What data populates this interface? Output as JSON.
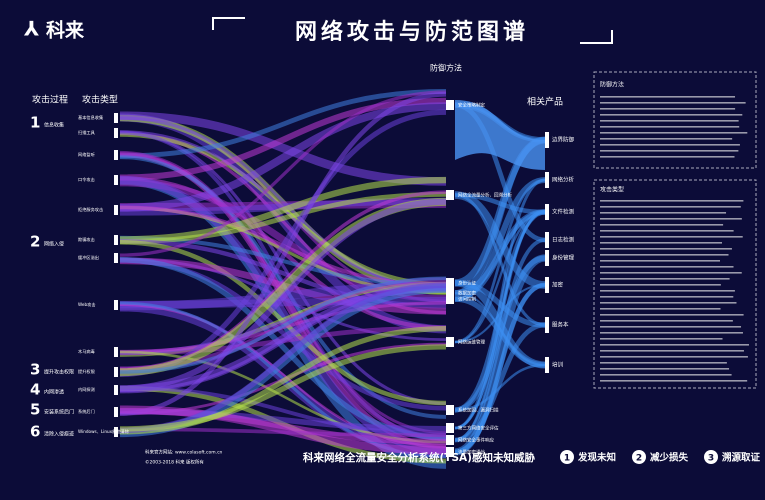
{
  "header": {
    "logo": "科来",
    "title": "网络攻击与防范图谱"
  },
  "columns": {
    "process": "攻击过程",
    "type": "攻击类型",
    "defense": "防御方法",
    "product": "相关产品"
  },
  "stages": [
    {
      "number": "1",
      "label": "信息收集"
    },
    {
      "number": "2",
      "label": "网络入侵"
    },
    {
      "number": "3",
      "label": "提升攻击权限"
    },
    {
      "number": "4",
      "label": "内网渗透"
    },
    {
      "number": "5",
      "label": "安装系统后门"
    },
    {
      "number": "6",
      "label": "清除入侵痕迹"
    }
  ],
  "attack_types": [
    "基本信息收集",
    "扫描工具",
    "网络监听",
    "口令攻击",
    "拒绝服务攻击",
    "欺骗攻击",
    "缓冲区溢出",
    "Web攻击",
    "木马病毒",
    "提升权限",
    "内网探测",
    "系统后门",
    "Windows、Linux痕迹清除"
  ],
  "defenses": [
    "安全策略制定",
    "网络全流量分析、回溯分析",
    "身份认证",
    "数据加密",
    "访问控制",
    "网络运维管理",
    "系统加固、漏洞扫描",
    "第三方网络安全评估",
    "网络安全事件响应",
    "流量加密通信"
  ],
  "products": [
    "边界防御",
    "网络分析",
    "文件检测",
    "日志检测",
    "身份管理",
    "加密",
    "服务本",
    "培训"
  ],
  "side_panels": [
    {
      "title": "防御方法"
    },
    {
      "title": "攻击类型"
    }
  ],
  "footer": {
    "notes": [
      "科来官方网站: www.colasoft.com.cn",
      "©2003-2018 科来 版权所有"
    ],
    "slogan": "科来网络全流量安全分析系统(TSA)感知未知威胁",
    "benefits": [
      {
        "number": "1",
        "label": "发现未知"
      },
      {
        "number": "2",
        "label": "减少损失"
      },
      {
        "number": "3",
        "label": "溯源取证"
      }
    ]
  }
}
